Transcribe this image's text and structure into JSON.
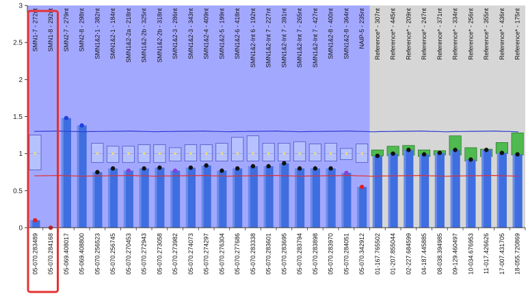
{
  "chart_data": {
    "type": "bar",
    "title": "",
    "xlabel": "",
    "ylabel": "",
    "ylim": [
      0,
      3
    ],
    "y_ticks": [
      "0",
      "0.5",
      "1",
      "1.5",
      "2",
      "2.5",
      "3"
    ],
    "y_tick_values": [
      0,
      0.5,
      1,
      1.5,
      2,
      2.5,
      3
    ],
    "grid": false,
    "colors": {
      "test_region": "#a3a8ff",
      "reference_region": "#d6d6d6",
      "bar": "#3f6ee0",
      "bar_light": "#7d98ec",
      "box_fill": "#b7c2ff",
      "box_stroke": "#5560c8",
      "ref_box": "#4fba4f",
      "upper_line": "#2b3bd0",
      "lower_line": "#e03030",
      "highlight": "#e53030",
      "median_marker": "#ffe15a"
    },
    "upper_threshold": 1.3,
    "lower_threshold": 0.7,
    "highlight_range": [
      0,
      1
    ],
    "probes": [
      "SMN1-7 - 272nt",
      "SMN1-8 - 292nt",
      "SMN2-7 - 279nt",
      "SMN2-8 - 298nt",
      "SMN1&2-1 - 382nt",
      "SMN1&2-1 - 184nt",
      "SMN1&2-2a - 218nt",
      "SMN1&2-2b - 325nt",
      "SMN1&2-2b - 318nt",
      "SMN1&2-3 - 286nt",
      "SMN1&2-3 - 343nt",
      "SMN1&2-4 - 409nt",
      "SMN1&2-5 - 199nt",
      "SMN1&2-6 - 418nt",
      "SMN1&2-Int 6 - 192nt",
      "SMN1&2-Int 7 - 227nt",
      "SMN1&2-Int 7 - 391nt",
      "SMN1&2-Int 7 - 265nt",
      "SMN1&2-Int 7 - 427nt",
      "SMN1&2-8 - 400nt",
      "SMN1&2-8 - 364nt",
      "NAIP-5 - 235nt",
      "Reference* - 307nt",
      "Reference* - 445nt",
      "Reference* - 209nt",
      "Reference* - 247nt",
      "Reference* - 371nt",
      "Reference* - 334nt",
      "Reference* - 256nt",
      "Reference* - 355nt",
      "Reference* - 436nt",
      "Reference* - 175nt"
    ],
    "categories": [
      "05-070.283489",
      "05-070.284168",
      "05-069.408017",
      "05-069.408800",
      "05-070.256523",
      "05-070.256745",
      "05-070.270453",
      "05-070.272943",
      "05-070.273058",
      "05-070.273982",
      "05-070.274073",
      "05-070.274297",
      "05-070.276304",
      "05-070.277686",
      "05-070.283338",
      "05-070.283601",
      "05-070.283695",
      "05-070.283794",
      "05-070.283898",
      "05-070.283970",
      "05-070.284051",
      "05-070.342912",
      "01-167.765502",
      "01-207.855044",
      "02-227.684599",
      "04-187.445885",
      "08-038.394985",
      "09-129.460497",
      "10-034.676953",
      "11-017.426626",
      "17-007.431705",
      "18-055.720869"
    ],
    "values": [
      0.1,
      0.0,
      1.48,
      1.38,
      0.75,
      0.8,
      0.77,
      0.8,
      0.81,
      0.77,
      0.81,
      0.84,
      0.77,
      0.8,
      0.83,
      0.83,
      0.87,
      0.8,
      0.8,
      0.8,
      0.74,
      0.55,
      0.97,
      1.0,
      1.05,
      0.99,
      1.01,
      1.05,
      0.92,
      1.05,
      1.01,
      0.99
    ],
    "box_low": [
      0.78,
      null,
      null,
      null,
      0.88,
      0.88,
      0.88,
      0.88,
      0.88,
      0.9,
      0.9,
      0.9,
      0.9,
      0.9,
      0.9,
      0.9,
      0.9,
      0.9,
      0.9,
      0.9,
      0.92,
      0.88,
      0.97,
      0.97,
      0.98,
      0.96,
      0.98,
      0.98,
      0.9,
      0.96,
      1.0,
      0.98
    ],
    "box_high": [
      1.25,
      1.0,
      null,
      null,
      1.14,
      1.1,
      1.1,
      1.12,
      1.12,
      1.08,
      1.12,
      1.12,
      1.14,
      1.22,
      1.24,
      1.14,
      1.14,
      1.16,
      1.13,
      1.14,
      1.07,
      1.13,
      1.05,
      1.1,
      1.11,
      1.05,
      1.04,
      1.24,
      1.08,
      1.06,
      1.15,
      1.28
    ],
    "marker_color": [
      "red",
      "red",
      "blue",
      "blue",
      "black",
      "black",
      "purple",
      "black",
      "black",
      "purple",
      "black",
      "black",
      "black",
      "black",
      "black",
      "black",
      "black",
      "black",
      "black",
      "black",
      "purple",
      "red",
      "black",
      "black",
      "black",
      "black",
      "black",
      "black",
      "black",
      "black",
      "black",
      "black"
    ],
    "reference_start_index": 22
  }
}
